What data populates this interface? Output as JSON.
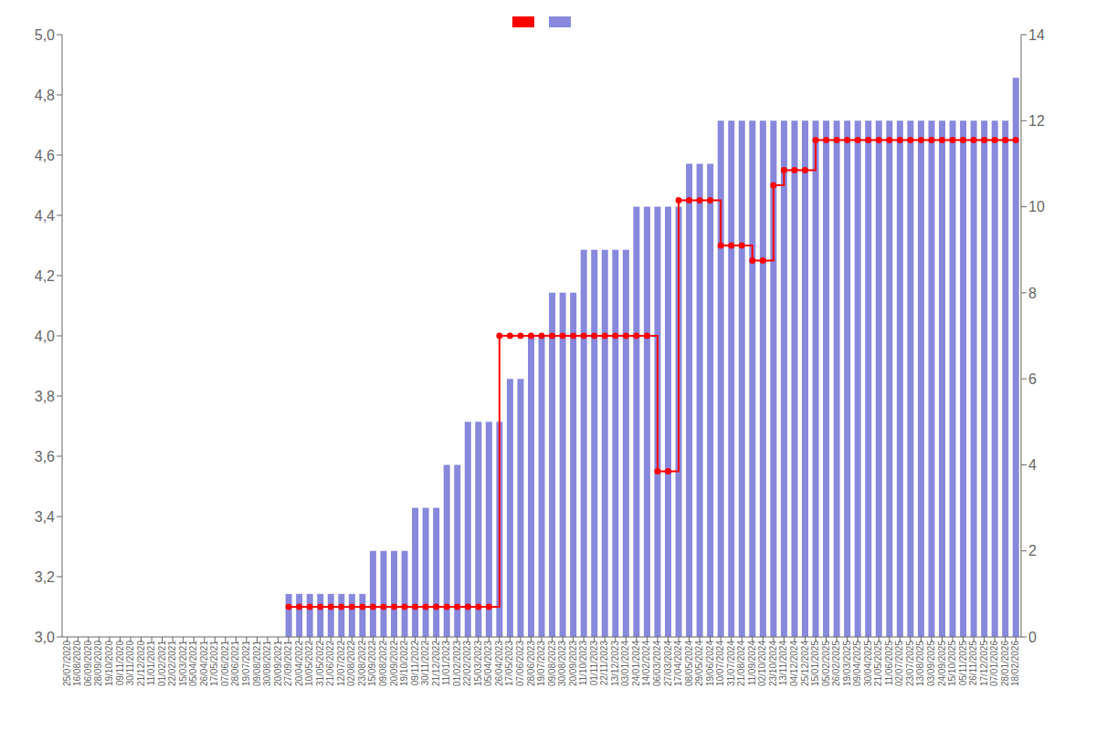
{
  "chart_data": {
    "type": "bar",
    "categories": [
      "25/07/2020",
      "16/08/2020",
      "06/09/2020",
      "28/09/2020",
      "19/10/2020",
      "09/11/2020",
      "30/11/2020",
      "21/12/2020",
      "11/01/2021",
      "01/02/2021",
      "22/02/2021",
      "15/03/2021",
      "05/04/2021",
      "26/04/2021",
      "17/05/2021",
      "07/06/2021",
      "28/06/2021",
      "19/07/2021",
      "09/08/2021",
      "30/08/2021",
      "20/09/2021",
      "27/09/2021",
      "20/04/2022",
      "10/05/2022",
      "31/05/2022",
      "21/06/2022",
      "12/07/2022",
      "02/08/2022",
      "23/08/2022",
      "15/09/2022",
      "09/08/2022",
      "20/09/2022",
      "19/10/2022",
      "09/11/2022",
      "30/11/2022",
      "21/12/2022",
      "11/01/2023",
      "01/02/2023",
      "22/02/2023",
      "15/03/2023",
      "05/04/2023",
      "26/04/2023",
      "17/05/2023",
      "07/06/2023",
      "28/06/2023",
      "19/07/2023",
      "09/08/2023",
      "30/08/2023",
      "20/09/2023",
      "11/10/2023",
      "01/11/2023",
      "22/11/2023",
      "13/12/2023",
      "03/01/2024",
      "24/01/2024",
      "14/02/2024",
      "06/03/2024",
      "27/03/2024",
      "17/04/2024",
      "08/05/2024",
      "29/05/2024",
      "19/06/2024",
      "10/07/2024",
      "31/07/2024",
      "21/08/2024",
      "11/09/2024",
      "02/10/2024",
      "23/10/2024",
      "13/11/2024",
      "04/12/2024",
      "25/12/2024",
      "15/01/2025",
      "05/02/2025",
      "26/02/2025",
      "19/03/2025",
      "09/04/2025",
      "30/04/2025",
      "21/05/2025",
      "11/06/2025",
      "02/07/2025",
      "23/07/2025",
      "13/08/2025",
      "03/09/2025",
      "24/09/2025",
      "15/10/2025",
      "05/11/2025",
      "26/11/2025",
      "17/12/2025",
      "07/01/2026",
      "28/01/2026",
      "18/02/2026"
    ],
    "series": [
      {
        "type": "line",
        "line_style": "step",
        "marker": "circle",
        "color": "#ff0000",
        "values": [
          null,
          null,
          null,
          null,
          null,
          null,
          null,
          null,
          null,
          null,
          null,
          null,
          null,
          null,
          null,
          null,
          null,
          null,
          null,
          null,
          null,
          3.1,
          3.1,
          3.1,
          3.1,
          3.1,
          3.1,
          3.1,
          3.1,
          3.1,
          3.1,
          3.1,
          3.1,
          3.1,
          3.1,
          3.1,
          3.1,
          3.1,
          3.1,
          3.1,
          3.1,
          4.0,
          4.0,
          4.0,
          4.0,
          4.0,
          4.0,
          4.0,
          4.0,
          4.0,
          4.0,
          4.0,
          4.0,
          4.0,
          4.0,
          4.0,
          3.55,
          3.55,
          4.45,
          4.45,
          4.45,
          4.45,
          4.3,
          4.3,
          4.3,
          4.25,
          4.25,
          4.5,
          4.55,
          4.55,
          4.55,
          4.65,
          4.65,
          4.65,
          4.65,
          4.65,
          4.65,
          4.65,
          4.65,
          4.65,
          4.65,
          4.65,
          4.65,
          4.65,
          4.65,
          4.65,
          4.65,
          4.65,
          4.65,
          4.65,
          4.65
        ]
      },
      {
        "type": "bar",
        "axis": "y2",
        "color": "#8888dd",
        "values": [
          0,
          0,
          0,
          0,
          0,
          0,
          0,
          0,
          0,
          0,
          0,
          0,
          0,
          0,
          0,
          0,
          0,
          0,
          0,
          0,
          0,
          1,
          1,
          1,
          1,
          1,
          1,
          1,
          1,
          2,
          2,
          2,
          2,
          3,
          3,
          3,
          4,
          4,
          5,
          5,
          5,
          5,
          6,
          6,
          7,
          7,
          8,
          8,
          8,
          9,
          9,
          9,
          9,
          9,
          10,
          10,
          10,
          10,
          10,
          11,
          11,
          11,
          12,
          12,
          12,
          12,
          12,
          12,
          12,
          12,
          12,
          12,
          12,
          12,
          12,
          12,
          12,
          12,
          12,
          12,
          12,
          12,
          12,
          12,
          12,
          12,
          12,
          12,
          12,
          12,
          13
        ]
      }
    ],
    "ylim": [
      3.0,
      5.0
    ],
    "yticks": [
      {
        "value": 3.0,
        "label": "3,0"
      },
      {
        "value": 3.2,
        "label": "3,2"
      },
      {
        "value": 3.4,
        "label": "3,4"
      },
      {
        "value": 3.6,
        "label": "3,6"
      },
      {
        "value": 3.8,
        "label": "3,8"
      },
      {
        "value": 4.0,
        "label": "4,0"
      },
      {
        "value": 4.2,
        "label": "4,2"
      },
      {
        "value": 4.4,
        "label": "4,4"
      },
      {
        "value": 4.6,
        "label": "4,6"
      },
      {
        "value": 4.8,
        "label": "4,8"
      },
      {
        "value": 5.0,
        "label": "5,0"
      }
    ],
    "y2lim": [
      0,
      14
    ],
    "y2ticks": [
      0,
      2,
      4,
      6,
      8,
      10,
      12,
      14
    ],
    "grid": false,
    "legend": "top"
  }
}
